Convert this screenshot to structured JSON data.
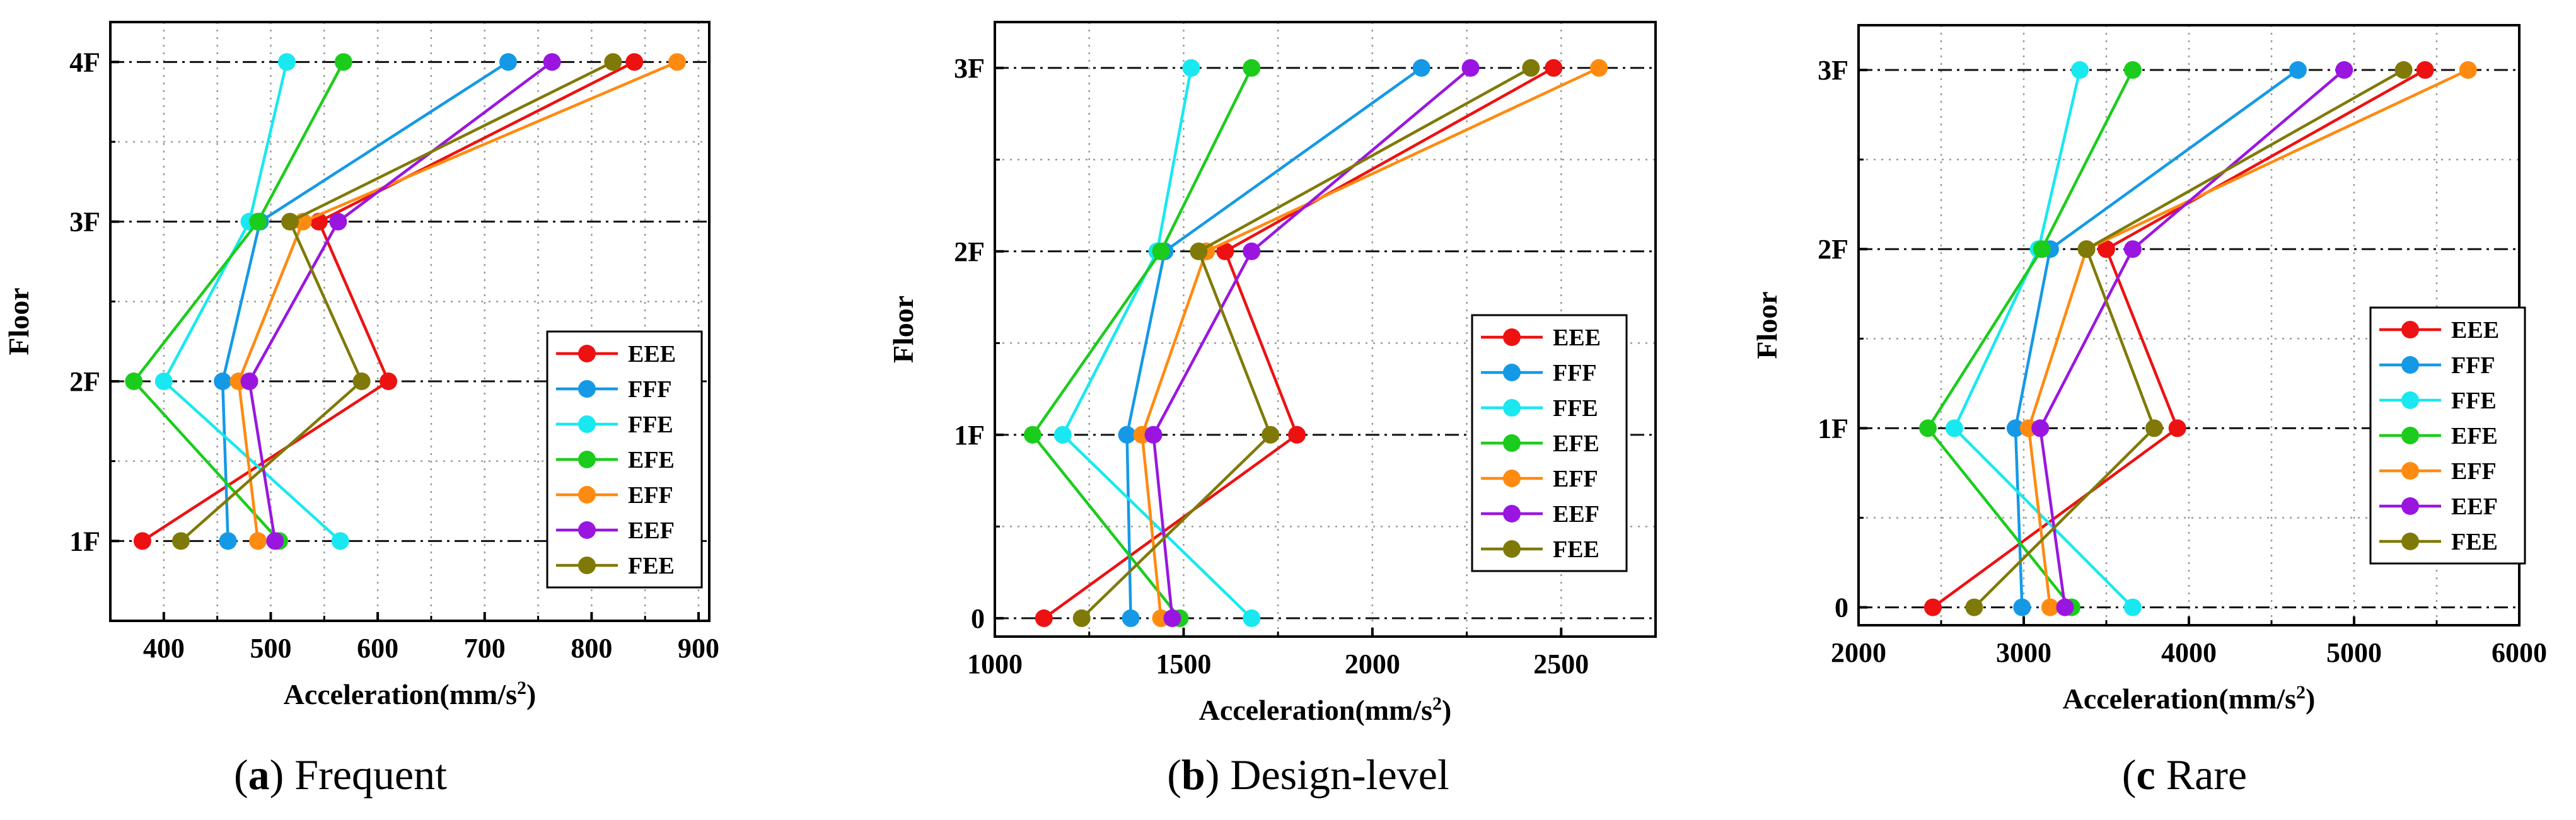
{
  "colors": {
    "EEE": "#ee1111",
    "FFF": "#1599e6",
    "FFE": "#19e8f0",
    "EFE": "#1ccc1c",
    "EFF": "#ff8a10",
    "EEF": "#9a16e0",
    "FEE": "#7f7a08"
  },
  "chart_data": [
    {
      "type": "line",
      "xlabel_main": "Acceleration(mm/s",
      "xlabel_sup": "2",
      "xlabel_close": ")",
      "ylabel": "Floor",
      "xlim": [
        350,
        910
      ],
      "xticks": [
        400,
        500,
        600,
        700,
        800,
        900
      ],
      "xtick_labels": [
        "400",
        "500",
        "600",
        "700",
        "800",
        "900"
      ],
      "xminor": [
        350,
        450,
        550,
        650,
        750,
        850
      ],
      "ylim": [
        0.5,
        4.25
      ],
      "yticks": [
        1,
        2,
        3,
        4
      ],
      "ytick_labels": [
        "1F",
        "2F",
        "3F",
        "4F"
      ],
      "yminor": [
        1.5,
        2.5,
        3.5
      ],
      "caption_open": "(",
      "caption_letter": "a",
      "caption_close": ") Frequent",
      "series": [
        {
          "name": "EEE",
          "x": [
            380,
            610,
            545,
            840
          ],
          "y": [
            1,
            2,
            3,
            4
          ]
        },
        {
          "name": "FFF",
          "x": [
            460,
            455,
            490,
            722
          ],
          "y": [
            1,
            2,
            3,
            4
          ]
        },
        {
          "name": "FFE",
          "x": [
            565,
            400,
            480,
            515
          ],
          "y": [
            1,
            2,
            3,
            4
          ]
        },
        {
          "name": "EFE",
          "x": [
            508,
            372,
            488,
            568
          ],
          "y": [
            1,
            2,
            3,
            4
          ]
        },
        {
          "name": "EFF",
          "x": [
            488,
            470,
            530,
            880
          ],
          "y": [
            1,
            2,
            3,
            4
          ]
        },
        {
          "name": "EEF",
          "x": [
            504,
            480,
            563,
            763
          ],
          "y": [
            1,
            2,
            3,
            4
          ]
        },
        {
          "name": "FEE",
          "x": [
            416,
            585,
            518,
            820
          ],
          "y": [
            1,
            2,
            3,
            4
          ]
        }
      ]
    },
    {
      "type": "line",
      "xlabel_main": "Acceleration(mm/s",
      "xlabel_sup": "2",
      "xlabel_close": ")",
      "ylabel": "Floor",
      "xlim": [
        1000,
        2750
      ],
      "xticks": [
        1000,
        1500,
        2000,
        2500
      ],
      "xtick_labels": [
        "1000",
        "1500",
        "2000",
        "2500"
      ],
      "xminor": [
        1250,
        1750,
        2250
      ],
      "ylim": [
        -0.1,
        3.25
      ],
      "yticks": [
        0,
        1,
        2,
        3
      ],
      "ytick_labels": [
        "0",
        "1F",
        "2F",
        "3F"
      ],
      "yminor": [
        0.5,
        1.5,
        2.5
      ],
      "caption_open": "(",
      "caption_letter": "b",
      "caption_close": ") Design-level",
      "series": [
        {
          "name": "EEE",
          "x": [
            1130,
            1800,
            1610,
            2480
          ],
          "y": [
            0,
            1,
            2,
            3
          ]
        },
        {
          "name": "FFF",
          "x": [
            1360,
            1350,
            1450,
            2130
          ],
          "y": [
            0,
            1,
            2,
            3
          ]
        },
        {
          "name": "FFE",
          "x": [
            1680,
            1180,
            1430,
            1520
          ],
          "y": [
            0,
            1,
            2,
            3
          ]
        },
        {
          "name": "EFE",
          "x": [
            1490,
            1100,
            1440,
            1680
          ],
          "y": [
            0,
            1,
            2,
            3
          ]
        },
        {
          "name": "EFF",
          "x": [
            1440,
            1390,
            1560,
            2600
          ],
          "y": [
            0,
            1,
            2,
            3
          ]
        },
        {
          "name": "EEF",
          "x": [
            1470,
            1420,
            1680,
            2260
          ],
          "y": [
            0,
            1,
            2,
            3
          ]
        },
        {
          "name": "FEE",
          "x": [
            1230,
            1730,
            1540,
            2420
          ],
          "y": [
            0,
            1,
            2,
            3
          ]
        }
      ]
    },
    {
      "type": "line",
      "xlabel_main": "Acceleration(mm/s",
      "xlabel_sup": "2",
      "xlabel_close": ")",
      "ylabel": "Floor",
      "xlim": [
        2000,
        6000
      ],
      "xticks": [
        2000,
        3000,
        4000,
        5000,
        6000
      ],
      "xtick_labels": [
        "2000",
        "3000",
        "4000",
        "5000",
        "6000"
      ],
      "xminor": [
        2500,
        3500,
        4500,
        5500
      ],
      "ylim": [
        -0.1,
        3.25
      ],
      "yticks": [
        0,
        1,
        2,
        3
      ],
      "ytick_labels": [
        "0",
        "1F",
        "2F",
        "3F"
      ],
      "yminor": [
        0.5,
        1.5,
        2.5
      ],
      "caption_open": "(",
      "caption_letter": "c",
      "caption_close": " Rare",
      "series": [
        {
          "name": "EEE",
          "x": [
            2450,
            3930,
            3500,
            5430
          ],
          "y": [
            0,
            1,
            2,
            3
          ]
        },
        {
          "name": "FFF",
          "x": [
            2990,
            2950,
            3160,
            4660
          ],
          "y": [
            0,
            1,
            2,
            3
          ]
        },
        {
          "name": "FFE",
          "x": [
            3660,
            2580,
            3090,
            3340
          ],
          "y": [
            0,
            1,
            2,
            3
          ]
        },
        {
          "name": "EFE",
          "x": [
            3290,
            2420,
            3110,
            3660
          ],
          "y": [
            0,
            1,
            2,
            3
          ]
        },
        {
          "name": "EFF",
          "x": [
            3160,
            3030,
            3380,
            5690
          ],
          "y": [
            0,
            1,
            2,
            3
          ]
        },
        {
          "name": "EEF",
          "x": [
            3250,
            3100,
            3660,
            4940
          ],
          "y": [
            0,
            1,
            2,
            3
          ]
        },
        {
          "name": "FEE",
          "x": [
            2700,
            3790,
            3380,
            5300
          ],
          "y": [
            0,
            1,
            2,
            3
          ]
        }
      ]
    }
  ]
}
